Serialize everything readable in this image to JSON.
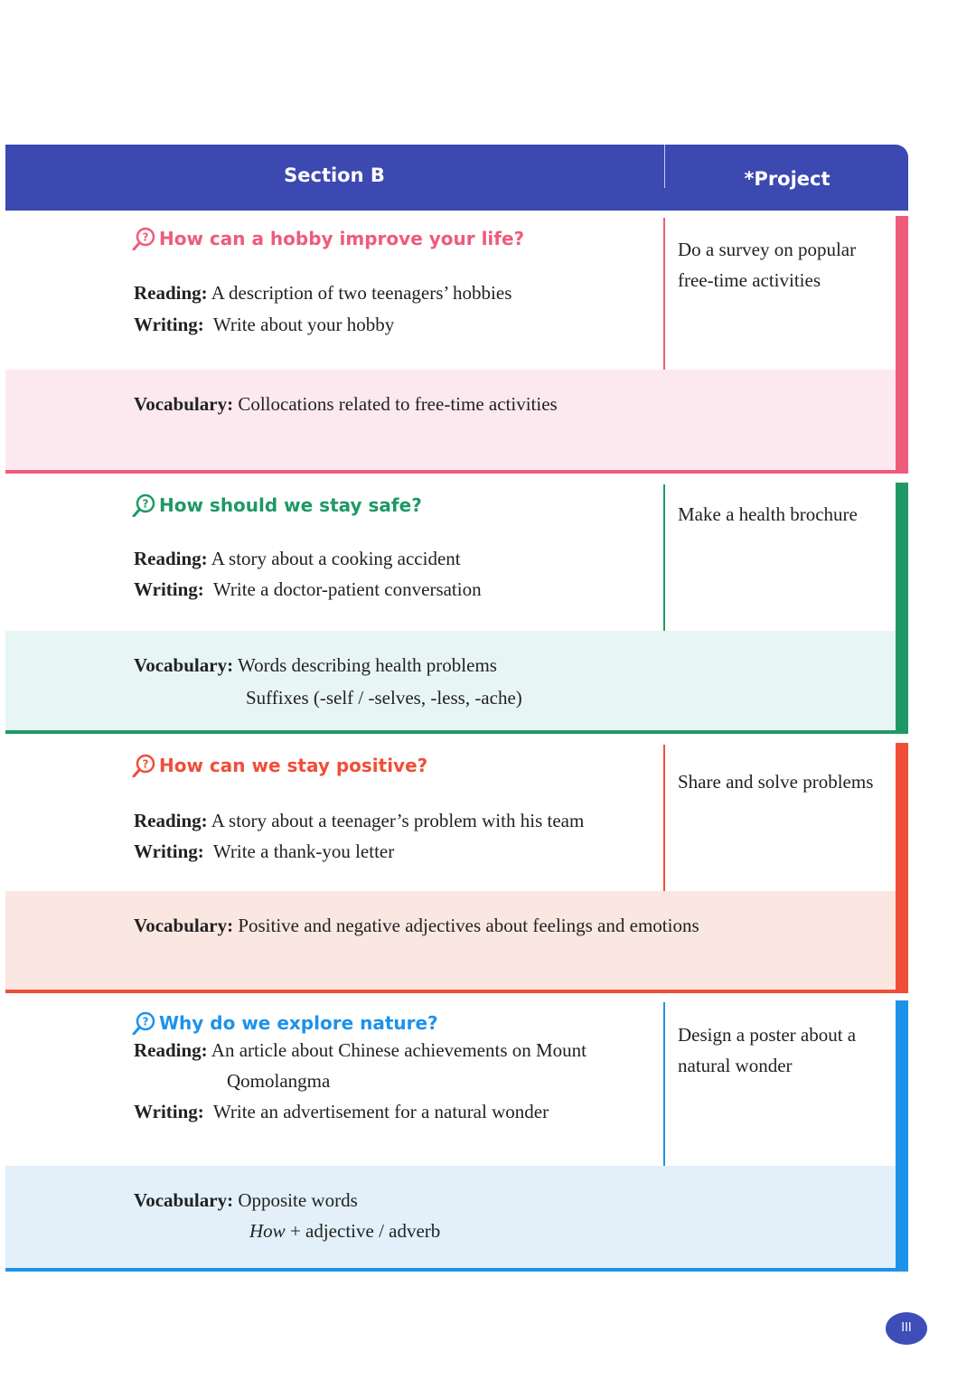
{
  "header": {
    "section_b": "Section B",
    "project": "*Project"
  },
  "sections": [
    {
      "color": "#ef5b7a",
      "vocab_bg": "#fce9ef",
      "question": "How can a hobby improve your life?",
      "reading_label": "Reading:",
      "reading": "A description of two teenagers’ hobbies",
      "reading_cont": "",
      "writing_label": "Writing:",
      "writing": "Write about your hobby",
      "vocab_label": "Vocabulary:",
      "vocab": "Collocations related to free-time activities",
      "vocab2": "",
      "project": "Do a survey on popular free-time activities"
    },
    {
      "color": "#1e9966",
      "vocab_bg": "#e7f6f4",
      "question": "How should we stay safe?",
      "reading_label": "Reading:",
      "reading": "A story about a cooking accident",
      "reading_cont": "",
      "writing_label": "Writing:",
      "writing": "Write a doctor-patient conversation",
      "vocab_label": "Vocabulary:",
      "vocab": "Words describing health problems",
      "vocab2": "Suffixes (-self / -selves, -less, -ache)",
      "project": "Make a health brochure"
    },
    {
      "color": "#f04e38",
      "vocab_bg": "#fbe7e1",
      "question": "How can we stay positive?",
      "reading_label": "Reading:",
      "reading": "A story about a teenager’s problem with his team",
      "reading_cont": "",
      "writing_label": "Writing:",
      "writing": "Write a thank-you letter",
      "vocab_label": "Vocabulary:",
      "vocab": "Positive and negative adjectives about feelings and emotions",
      "vocab2": "",
      "project": "Share and solve problems"
    },
    {
      "color": "#1d92ea",
      "vocab_bg": "#e3f0fa",
      "question": "Why do we explore nature?",
      "reading_label": "Reading:",
      "reading": "An article about Chinese achievements on Mount",
      "reading_cont": "Qomolangma",
      "writing_label": "Writing:",
      "writing": "Write an advertisement for a natural wonder",
      "vocab_label": "Vocabulary:",
      "vocab": "Opposite words",
      "vocab2_italic": "How",
      "vocab2": "+ adjective / adverb",
      "project": "Design a poster about a natural wonder"
    }
  ],
  "page_number": "III"
}
